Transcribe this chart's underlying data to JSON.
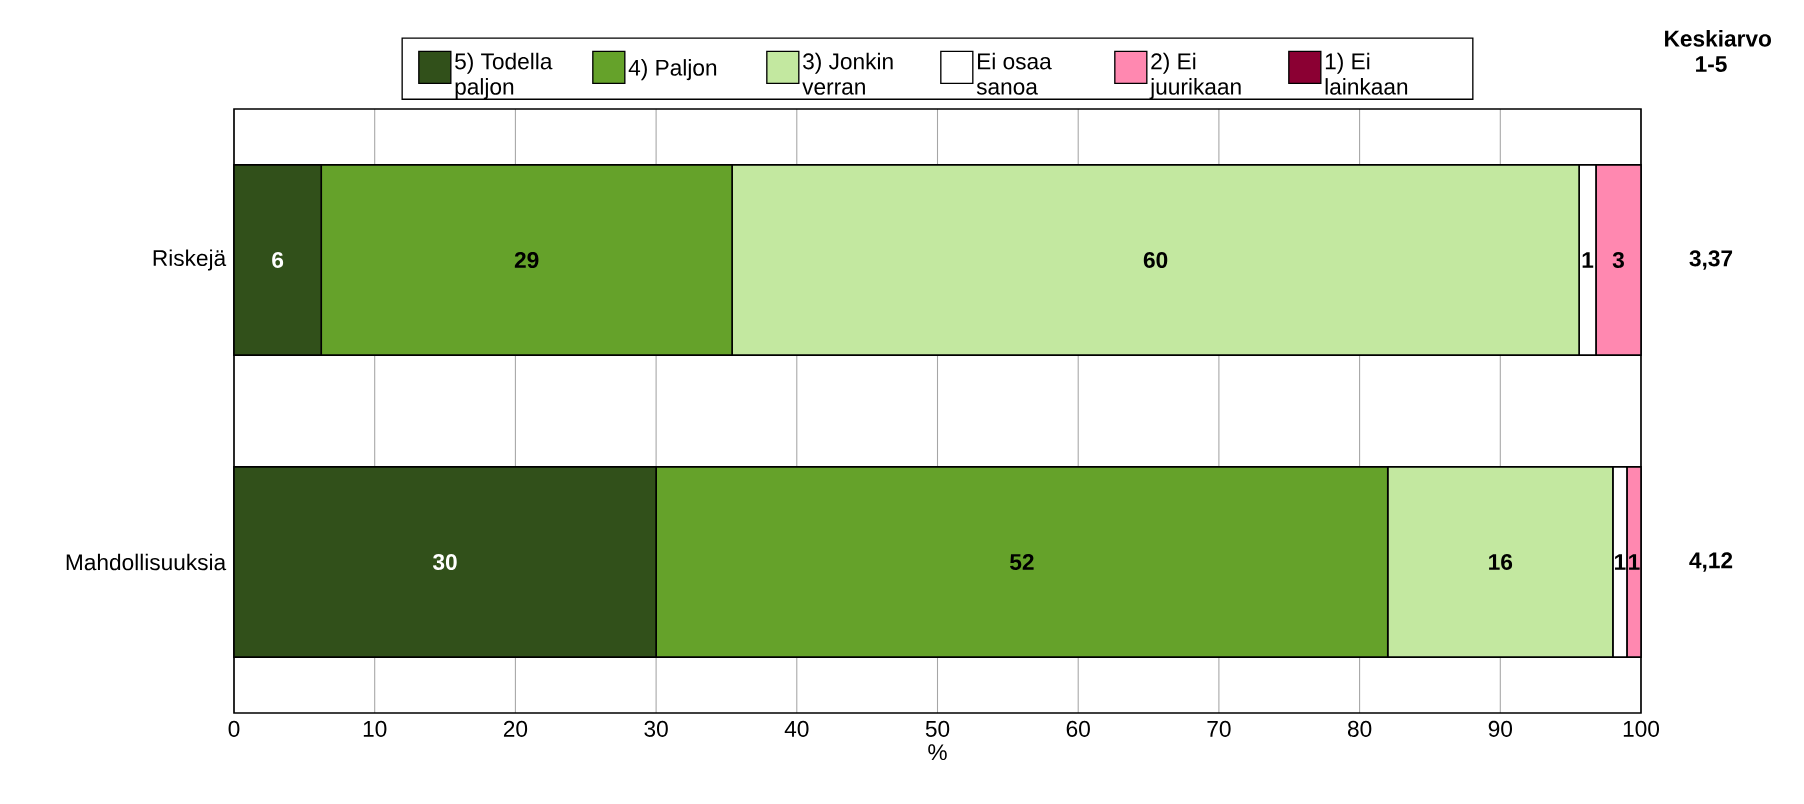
{
  "chart_data": {
    "type": "bar",
    "orientation": "horizontal",
    "stacked": true,
    "xlabel": "%",
    "categories": [
      "Riskejä",
      "Mahdollisuuksia"
    ],
    "series": [
      {
        "name": "5) Todella paljon",
        "color": "#31501a",
        "values": [
          6.2,
          30
        ],
        "value_labels": [
          "6",
          "30"
        ]
      },
      {
        "name": "4) Paljon",
        "color": "#65a22a",
        "values": [
          29.2,
          52
        ],
        "value_labels": [
          "29",
          "52"
        ]
      },
      {
        "name": "3) Jonkin verran",
        "color": "#c3e8a0",
        "values": [
          60.2,
          16
        ],
        "value_labels": [
          "60",
          "16"
        ]
      },
      {
        "name": "Ei osaa sanoa",
        "color": "#ffffff",
        "values": [
          1.2,
          1
        ],
        "value_labels": [
          "1",
          "1"
        ]
      },
      {
        "name": "2) Ei juurikaan",
        "color": "#ff88b0",
        "values": [
          3.2,
          1
        ],
        "value_labels": [
          "3",
          "1"
        ]
      },
      {
        "name": "1) Ei lainkaan",
        "color": "#8b0033",
        "values": [
          0,
          0
        ],
        "value_labels": [
          null,
          null
        ]
      }
    ],
    "xlim": [
      0,
      100
    ],
    "xticks": [
      0,
      10,
      20,
      30,
      40,
      50,
      60,
      70,
      80,
      90,
      100
    ],
    "grid": "x",
    "legend": "top",
    "annotations": [
      "Keskiarvo 1-5",
      "3,37",
      "4,12"
    ]
  }
}
